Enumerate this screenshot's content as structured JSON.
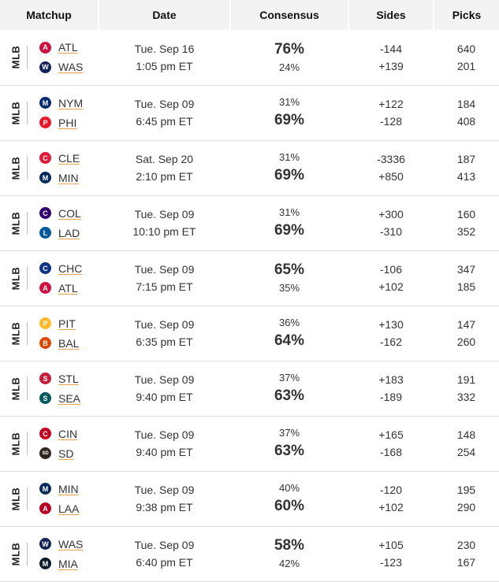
{
  "headers": {
    "matchup": "Matchup",
    "date": "Date",
    "consensus": "Consensus",
    "sides": "Sides",
    "picks": "Picks"
  },
  "games": [
    {
      "league": "MLB",
      "away": {
        "abbr": "ATL",
        "logo": "braves-logo-icon",
        "color": "#ce1141",
        "glyph": "A"
      },
      "home": {
        "abbr": "WAS",
        "logo": "nationals-logo-icon",
        "color": "#14225a",
        "glyph": "W"
      },
      "date": "Tue. Sep 16",
      "time": "1:05 pm ET",
      "away_pct": "76%",
      "home_pct": "24%",
      "big": "away",
      "away_side": "-144",
      "home_side": "+139",
      "away_picks": "640",
      "home_picks": "201"
    },
    {
      "league": "MLB",
      "away": {
        "abbr": "NYM",
        "logo": "mets-logo-icon",
        "color": "#002d72",
        "glyph": "M"
      },
      "home": {
        "abbr": "PHI",
        "logo": "phillies-logo-icon",
        "color": "#e81828",
        "glyph": "P"
      },
      "date": "Tue. Sep 09",
      "time": "6:45 pm ET",
      "away_pct": "31%",
      "home_pct": "69%",
      "big": "home",
      "away_side": "+122",
      "home_side": "-128",
      "away_picks": "184",
      "home_picks": "408"
    },
    {
      "league": "MLB",
      "away": {
        "abbr": "CLE",
        "logo": "guardians-logo-icon",
        "color": "#e31937",
        "glyph": "C"
      },
      "home": {
        "abbr": "MIN",
        "logo": "twins-logo-icon",
        "color": "#002b5c",
        "glyph": "M"
      },
      "date": "Sat. Sep 20",
      "time": "2:10 pm ET",
      "away_pct": "31%",
      "home_pct": "69%",
      "big": "home",
      "away_side": "-3336",
      "home_side": "+850",
      "away_picks": "187",
      "home_picks": "413"
    },
    {
      "league": "MLB",
      "away": {
        "abbr": "COL",
        "logo": "rockies-logo-icon",
        "color": "#33006f",
        "glyph": "C"
      },
      "home": {
        "abbr": "LAD",
        "logo": "dodgers-logo-icon",
        "color": "#005a9c",
        "glyph": "L"
      },
      "date": "Tue. Sep 09",
      "time": "10:10 pm ET",
      "away_pct": "31%",
      "home_pct": "69%",
      "big": "home",
      "away_side": "+300",
      "home_side": "-310",
      "away_picks": "160",
      "home_picks": "352"
    },
    {
      "league": "MLB",
      "away": {
        "abbr": "CHC",
        "logo": "cubs-logo-icon",
        "color": "#0e3386",
        "glyph": "C"
      },
      "home": {
        "abbr": "ATL",
        "logo": "braves-logo-icon",
        "color": "#ce1141",
        "glyph": "A"
      },
      "date": "Tue. Sep 09",
      "time": "7:15 pm ET",
      "away_pct": "65%",
      "home_pct": "35%",
      "big": "away",
      "away_side": "-106",
      "home_side": "+102",
      "away_picks": "347",
      "home_picks": "185"
    },
    {
      "league": "MLB",
      "away": {
        "abbr": "PIT",
        "logo": "pirates-logo-icon",
        "color": "#fdb827",
        "glyph": "P"
      },
      "home": {
        "abbr": "BAL",
        "logo": "orioles-logo-icon",
        "color": "#df4601",
        "glyph": "B"
      },
      "date": "Tue. Sep 09",
      "time": "6:35 pm ET",
      "away_pct": "36%",
      "home_pct": "64%",
      "big": "home",
      "away_side": "+130",
      "home_side": "-162",
      "away_picks": "147",
      "home_picks": "260"
    },
    {
      "league": "MLB",
      "away": {
        "abbr": "STL",
        "logo": "cardinals-logo-icon",
        "color": "#c41e3a",
        "glyph": "S"
      },
      "home": {
        "abbr": "SEA",
        "logo": "mariners-logo-icon",
        "color": "#005c5c",
        "glyph": "S"
      },
      "date": "Tue. Sep 09",
      "time": "9:40 pm ET",
      "away_pct": "37%",
      "home_pct": "63%",
      "big": "home",
      "away_side": "+183",
      "home_side": "-189",
      "away_picks": "191",
      "home_picks": "332"
    },
    {
      "league": "MLB",
      "away": {
        "abbr": "CIN",
        "logo": "reds-logo-icon",
        "color": "#c6011f",
        "glyph": "C"
      },
      "home": {
        "abbr": "SD",
        "logo": "padres-logo-icon",
        "color": "#2f241d",
        "glyph": "SD"
      },
      "date": "Tue. Sep 09",
      "time": "9:40 pm ET",
      "away_pct": "37%",
      "home_pct": "63%",
      "big": "home",
      "away_side": "+165",
      "home_side": "-168",
      "away_picks": "148",
      "home_picks": "254"
    },
    {
      "league": "MLB",
      "away": {
        "abbr": "MIN",
        "logo": "twins-logo-icon",
        "color": "#002b5c",
        "glyph": "M"
      },
      "home": {
        "abbr": "LAA",
        "logo": "angels-logo-icon",
        "color": "#ba0021",
        "glyph": "A"
      },
      "date": "Tue. Sep 09",
      "time": "9:38 pm ET",
      "away_pct": "40%",
      "home_pct": "60%",
      "big": "home",
      "away_side": "-120",
      "home_side": "+102",
      "away_picks": "195",
      "home_picks": "290"
    },
    {
      "league": "MLB",
      "away": {
        "abbr": "WAS",
        "logo": "nationals-logo-icon",
        "color": "#14225a",
        "glyph": "W"
      },
      "home": {
        "abbr": "MIA",
        "logo": "marlins-logo-icon",
        "color": "#0c1d2c",
        "glyph": "M"
      },
      "date": "Tue. Sep 09",
      "time": "6:40 pm ET",
      "away_pct": "58%",
      "home_pct": "42%",
      "big": "away",
      "away_side": "+105",
      "home_side": "-123",
      "away_picks": "230",
      "home_picks": "167"
    }
  ]
}
